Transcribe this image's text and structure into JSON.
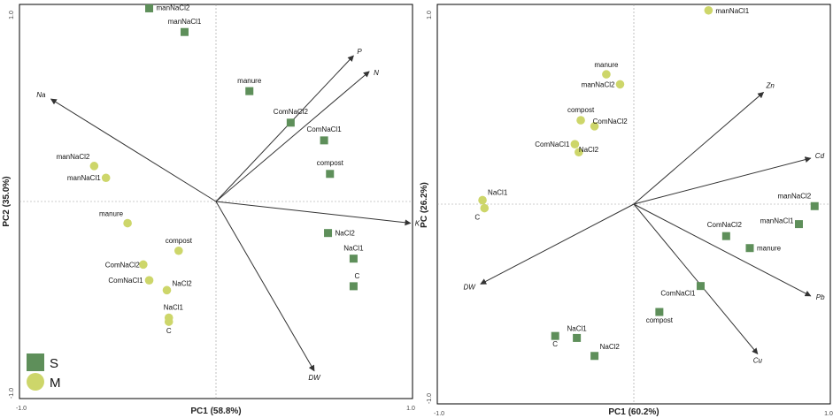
{
  "chart_data": [
    {
      "type": "scatter",
      "title": "",
      "xlabel": "PC1 (58.8%)",
      "ylabel": "PC2 (35.0%)",
      "xlim": [
        -1.0,
        1.0
      ],
      "ylim": [
        -1.0,
        1.0
      ],
      "tick_labels": {
        "xmin": "-1.0",
        "xmax": "1.0",
        "ymin": "-1.0",
        "ymax": "1.0"
      },
      "series": [
        {
          "name": "S",
          "marker": "square",
          "color": "#5e8f5a",
          "points": [
            {
              "label": "manNaCl2",
              "x": -0.34,
              "y": 0.98
            },
            {
              "label": "manNaCl1",
              "x": -0.16,
              "y": 0.86
            },
            {
              "label": "manure",
              "x": 0.17,
              "y": 0.56
            },
            {
              "label": "ComNaCl2",
              "x": 0.38,
              "y": 0.4
            },
            {
              "label": "ComNaCl1",
              "x": 0.55,
              "y": 0.31
            },
            {
              "label": "compost",
              "x": 0.58,
              "y": 0.14
            },
            {
              "label": "NaCl2",
              "x": 0.57,
              "y": -0.16
            },
            {
              "label": "NaCl1",
              "x": 0.7,
              "y": -0.29
            },
            {
              "label": "C",
              "x": 0.7,
              "y": -0.43
            }
          ]
        },
        {
          "name": "M",
          "marker": "circle",
          "color": "#cdd66a",
          "points": [
            {
              "label": "manNaCl2",
              "x": -0.62,
              "y": 0.18
            },
            {
              "label": "manNaCl1",
              "x": -0.56,
              "y": 0.12
            },
            {
              "label": "manure",
              "x": -0.45,
              "y": -0.11
            },
            {
              "label": "compost",
              "x": -0.19,
              "y": -0.25
            },
            {
              "label": "ComNaCl2",
              "x": -0.37,
              "y": -0.32
            },
            {
              "label": "ComNaCl1",
              "x": -0.34,
              "y": -0.4
            },
            {
              "label": "NaCl2",
              "x": -0.25,
              "y": -0.45
            },
            {
              "label": "NaCl1",
              "x": -0.24,
              "y": -0.59
            },
            {
              "label": "C",
              "x": -0.24,
              "y": -0.61
            }
          ]
        }
      ],
      "vectors": [
        {
          "label": "P",
          "x": 0.7,
          "y": 0.74
        },
        {
          "label": "N",
          "x": 0.78,
          "y": 0.66
        },
        {
          "label": "Na",
          "x": -0.84,
          "y": 0.52
        },
        {
          "label": "K",
          "x": 0.99,
          "y": -0.11
        },
        {
          "label": "DW",
          "x": 0.5,
          "y": -0.86
        }
      ],
      "legend": {
        "position": "bottom-left",
        "items": [
          "S",
          "M"
        ]
      }
    },
    {
      "type": "scatter",
      "title": "",
      "xlabel": "PC1 (60.2%)",
      "ylabel": "PC (26.2%)",
      "xlim": [
        -1.0,
        1.0
      ],
      "ylim": [
        -1.0,
        1.0
      ],
      "tick_labels": {
        "xmin": "-1.0",
        "xmax": "1.0",
        "ymin": "-1.0",
        "ymax": "1.0"
      },
      "series": [
        {
          "name": "S",
          "marker": "square",
          "color": "#5e8f5a",
          "points": [
            {
              "label": "manNaCl2",
              "x": 0.92,
              "y": -0.01
            },
            {
              "label": "manNaCl1",
              "x": 0.84,
              "y": -0.1
            },
            {
              "label": "ComNaCl2",
              "x": 0.47,
              "y": -0.16
            },
            {
              "label": "manure",
              "x": 0.59,
              "y": -0.22
            },
            {
              "label": "ComNaCl1",
              "x": 0.34,
              "y": -0.41
            },
            {
              "label": "compost",
              "x": 0.13,
              "y": -0.54
            },
            {
              "label": "NaCl1",
              "x": -0.29,
              "y": -0.67
            },
            {
              "label": "C",
              "x": -0.4,
              "y": -0.66
            },
            {
              "label": "NaCl2",
              "x": -0.2,
              "y": -0.76
            }
          ]
        },
        {
          "name": "M",
          "marker": "circle",
          "color": "#cdd66a",
          "points": [
            {
              "label": "manNaCl1",
              "x": 0.38,
              "y": 0.97
            },
            {
              "label": "manure",
              "x": -0.14,
              "y": 0.65
            },
            {
              "label": "manNaCl2",
              "x": -0.07,
              "y": 0.6
            },
            {
              "label": "compost",
              "x": -0.27,
              "y": 0.42
            },
            {
              "label": "ComNaCl2",
              "x": -0.2,
              "y": 0.39
            },
            {
              "label": "ComNaCl1",
              "x": -0.3,
              "y": 0.3
            },
            {
              "label": "NaCl2",
              "x": -0.28,
              "y": 0.26
            },
            {
              "label": "NaCl1",
              "x": -0.77,
              "y": 0.02
            },
            {
              "label": "C",
              "x": -0.76,
              "y": -0.02
            }
          ]
        }
      ],
      "vectors": [
        {
          "label": "Zn",
          "x": 0.66,
          "y": 0.56
        },
        {
          "label": "Cd",
          "x": 0.9,
          "y": 0.23
        },
        {
          "label": "Pb",
          "x": 0.9,
          "y": -0.46
        },
        {
          "label": "Cu",
          "x": 0.63,
          "y": -0.75
        },
        {
          "label": "DW",
          "x": -0.78,
          "y": -0.4
        }
      ]
    }
  ]
}
